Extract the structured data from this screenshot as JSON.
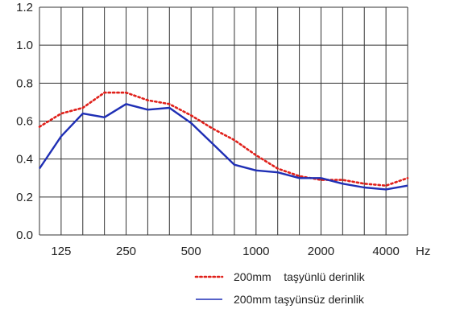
{
  "chart_data": {
    "type": "line",
    "xlabel": "",
    "ylabel": "",
    "x_unit": "Hz",
    "ylim": [
      0,
      1.2
    ],
    "y_ticks": [
      "0.0",
      "0.2",
      "0.4",
      "0.6",
      "0.8",
      "1.0",
      "1.2"
    ],
    "x_ticks": [
      "125",
      "250",
      "500",
      "1000",
      "2000",
      "4000"
    ],
    "grid": true,
    "legend_position": "bottom-right",
    "x": [
      "100",
      "125",
      "160",
      "200",
      "250",
      "315",
      "400",
      "500",
      "630",
      "800",
      "1000",
      "1250",
      "1600",
      "2000",
      "2500",
      "3150",
      "4000",
      "5000"
    ],
    "series": [
      {
        "name": "200mm    taşyünlü derinlik",
        "style": "dotted",
        "color": "#e0201a",
        "values": [
          0.57,
          0.64,
          0.67,
          0.75,
          0.75,
          0.71,
          0.69,
          0.63,
          0.56,
          0.5,
          0.42,
          0.35,
          0.31,
          0.29,
          0.29,
          0.27,
          0.26,
          0.3
        ]
      },
      {
        "name": "200mm taşyünsüz derinlik",
        "style": "solid",
        "color": "#1f2fb5",
        "values": [
          0.35,
          0.52,
          0.64,
          0.62,
          0.69,
          0.66,
          0.67,
          0.59,
          0.48,
          0.37,
          0.34,
          0.33,
          0.3,
          0.3,
          0.27,
          0.25,
          0.24,
          0.26
        ]
      }
    ]
  }
}
